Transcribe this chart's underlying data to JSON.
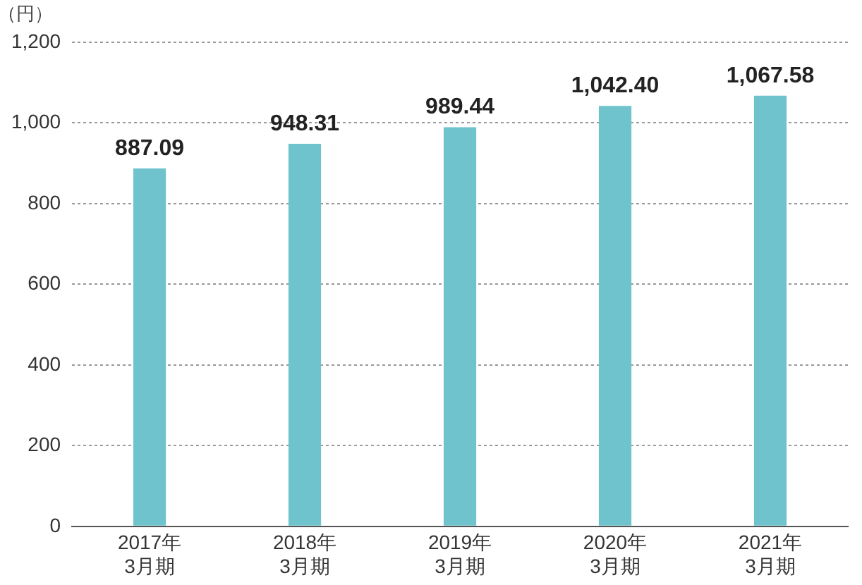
{
  "chart_data": {
    "type": "bar",
    "ylabel": "（円）",
    "categories": [
      "2017年\n3月期",
      "2018年\n3月期",
      "2019年\n3月期",
      "2020年\n3月期",
      "2021年\n3月期"
    ],
    "values": [
      887.09,
      948.31,
      989.44,
      1042.4,
      1067.58
    ],
    "value_labels": [
      "887.09",
      "948.31",
      "989.44",
      "1,042.40",
      "1,067.58"
    ],
    "color": "#6fc3cc",
    "ylim": [
      0,
      1200
    ],
    "yticks": [
      0,
      200,
      400,
      600,
      800,
      {
        "value": 1000,
        "label": "1,000"
      },
      {
        "value": 1200,
        "label": "1,200"
      }
    ],
    "grid": "y",
    "legend": false
  }
}
